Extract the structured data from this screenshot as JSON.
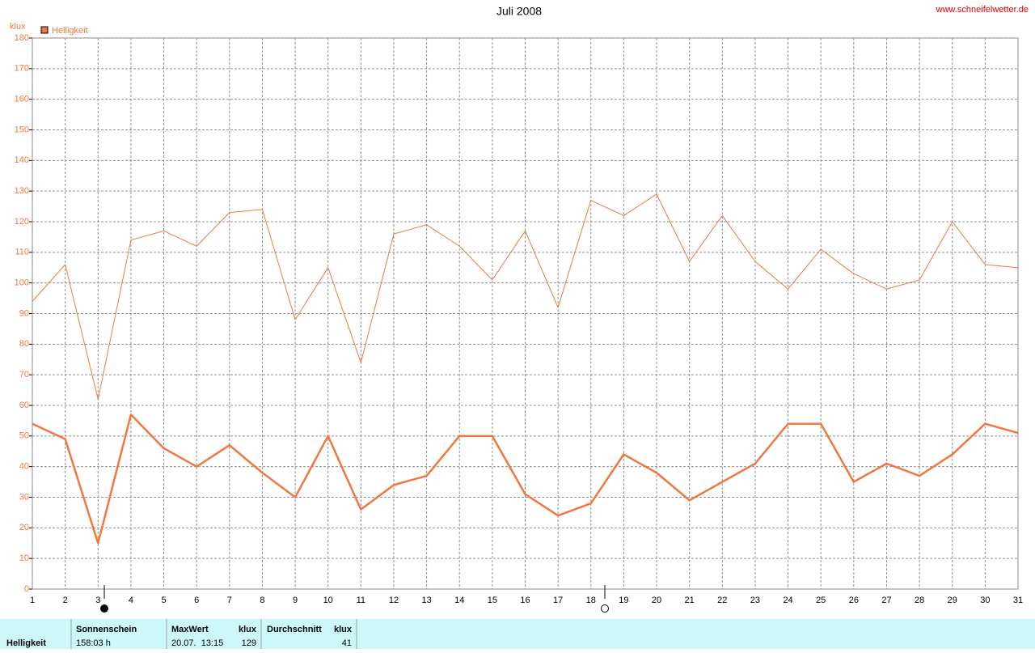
{
  "chart_data": {
    "type": "line",
    "title": "Juli 2008",
    "source": "www.schneifelwetter.de",
    "y_label": "klux",
    "x": [
      1,
      2,
      3,
      4,
      5,
      6,
      7,
      8,
      9,
      10,
      11,
      12,
      13,
      14,
      15,
      16,
      17,
      18,
      19,
      20,
      21,
      22,
      23,
      24,
      25,
      26,
      27,
      28,
      29,
      30,
      31
    ],
    "xlim": [
      1,
      31
    ],
    "ylim": [
      0,
      180
    ],
    "yticks": [
      0,
      10,
      20,
      30,
      40,
      50,
      60,
      70,
      80,
      90,
      100,
      110,
      120,
      130,
      140,
      150,
      160,
      170,
      180
    ],
    "grid": true,
    "series": [
      {
        "name": "Helligkeit",
        "color": "#f07840",
        "width": 2.5,
        "values": [
          54,
          49,
          15,
          57,
          46,
          40,
          47,
          38,
          30,
          50,
          26,
          34,
          37,
          50,
          50,
          31,
          24,
          28,
          44,
          38,
          29,
          35,
          41,
          54,
          54,
          35,
          41,
          37,
          44,
          54,
          51
        ]
      },
      {
        "color": "#f07840",
        "width": 1,
        "values": [
          94,
          106,
          62,
          114,
          117,
          112,
          123,
          124,
          88,
          105,
          74,
          116,
          119,
          112,
          101,
          117,
          92,
          127,
          122,
          129,
          107,
          122,
          107,
          98,
          111,
          103,
          98,
          101,
          120,
          106,
          105
        ]
      }
    ]
  },
  "table": {
    "row_label": "Helligkeit",
    "headers": [
      "Sonnenschein",
      "MaxWert",
      "klux",
      "Durchschnitt",
      "klux"
    ],
    "sunshine": "158:03 h",
    "max_time": "20.07.  13:15",
    "max_value": 129,
    "avg_value": 41
  }
}
